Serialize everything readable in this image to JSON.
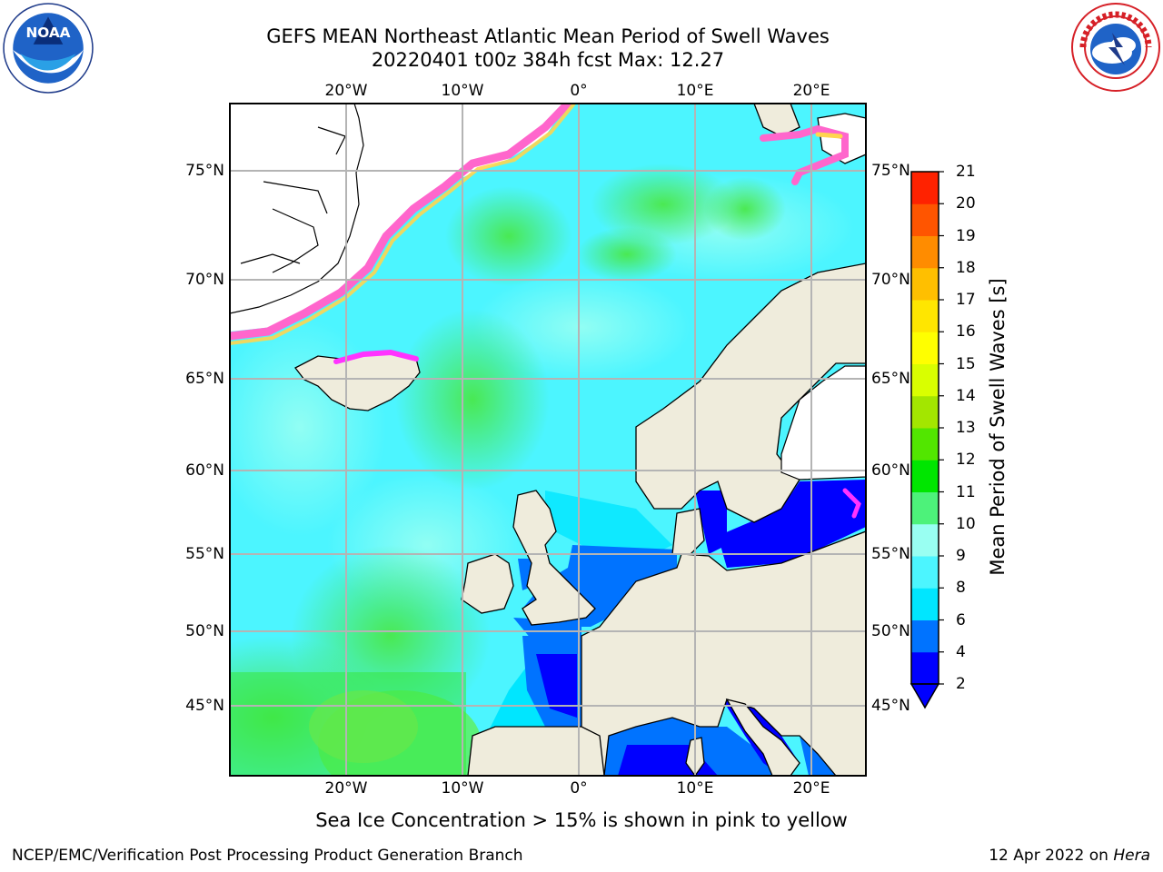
{
  "title_line1": "GEFS MEAN Northeast Atlantic Mean Period of Swell Waves",
  "title_line2": "20220401 t00z 384h fcst   Max: 12.27",
  "logos": {
    "left": "noaa-logo",
    "right": "national-weather-service-logo"
  },
  "map": {
    "projection": "lat-lon",
    "lon_range": [
      -30,
      25
    ],
    "lat_range": [
      41,
      78
    ],
    "lon_ticks": [
      "20°W",
      "10°W",
      "0°",
      "10°E",
      "20°E"
    ],
    "lat_ticks": [
      "75°N",
      "70°N",
      "65°N",
      "60°N",
      "55°N",
      "50°N",
      "45°N"
    ],
    "gridlines": true,
    "land_color": "#efecdc",
    "ice_note": "Sea Ice Concentration > 15% is shown in pink to yellow"
  },
  "colorbar": {
    "label": "Mean Period of Swell Waves [s]",
    "ticks": [
      "2",
      "4",
      "6",
      "8",
      "9",
      "10",
      "11",
      "12",
      "13",
      "14",
      "15",
      "16",
      "17",
      "18",
      "19",
      "20",
      "21"
    ],
    "colors": [
      "#0000ff",
      "#0073ff",
      "#00e6ff",
      "#4cf5ff",
      "#99fff2",
      "#4df27a",
      "#00e600",
      "#52e600",
      "#a3e600",
      "#d9ff00",
      "#ffff00",
      "#ffe600",
      "#ffbf00",
      "#ff8c00",
      "#ff5500",
      "#ff2200",
      "#ff0000"
    ],
    "extend_min_color": "#0000ff"
  },
  "footer": {
    "left": "NCEP/EMC/Verification Post Processing Product Generation Branch",
    "right_date": "12 Apr 2022 on ",
    "right_host": "Hera"
  }
}
